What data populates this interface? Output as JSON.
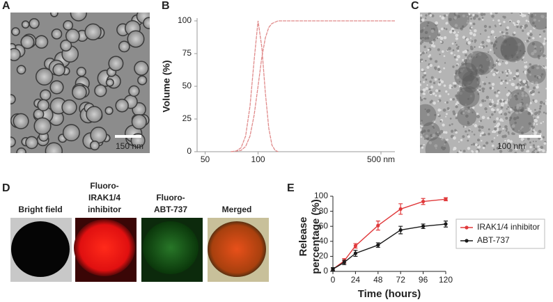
{
  "panel_labels": [
    "A",
    "B",
    "C",
    "D",
    "E"
  ],
  "images": {
    "a_scale": "150 nm",
    "c_scale": "100 nm",
    "d_captions": [
      [
        "Bright field"
      ],
      [
        "Fluoro-",
        "IRAK1/4",
        "inhibitor"
      ],
      [
        "Fluoro-",
        "ABT-737"
      ],
      [
        "Merged"
      ]
    ]
  },
  "chart_data": [
    {
      "type": "line",
      "ylabel": "Volume (%)",
      "xscale": "log",
      "xlim": [
        45,
        600
      ],
      "ylim": [
        0,
        100
      ],
      "xticks": [
        50,
        100,
        {
          "value": 500,
          "label": "500 nm"
        }
      ],
      "yticks": [
        0,
        25,
        50,
        75,
        100
      ],
      "series": [
        {
          "color": "#e08a8a",
          "x": [
            70,
            75,
            80,
            85,
            90,
            95,
            100,
            105,
            110,
            115,
            120,
            125,
            130
          ],
          "values": [
            0,
            0.5,
            3,
            12,
            35,
            70,
            100,
            80,
            45,
            18,
            5,
            1,
            0
          ]
        },
        {
          "color": "#e08a8a",
          "x": [
            70,
            80,
            85,
            90,
            95,
            100,
            105,
            110,
            115,
            120,
            130,
            140,
            600
          ],
          "values": [
            0,
            1,
            4,
            12,
            28,
            50,
            72,
            87,
            95,
            98,
            100,
            100,
            100
          ]
        }
      ]
    },
    {
      "type": "errorline",
      "xlabel": "Time (hours)",
      "ylabel": [
        "Release",
        "percentage (%)"
      ],
      "xlim": [
        0,
        120
      ],
      "ylim": [
        0,
        100
      ],
      "xticks": [
        0,
        24,
        48,
        72,
        96,
        120
      ],
      "yticks": [
        0,
        20,
        40,
        60,
        80,
        100
      ],
      "legend": "right",
      "x": [
        0,
        12,
        24,
        48,
        72,
        96,
        120
      ],
      "series": [
        {
          "name": "IRAK1/4 inhibitor",
          "color": "#e0393b",
          "values": [
            3,
            14,
            34,
            61,
            83,
            93,
            96
          ],
          "errors": [
            2,
            3,
            3,
            6,
            7,
            4,
            2
          ]
        },
        {
          "name": "ABT-737",
          "color": "#1a1a1a",
          "values": [
            3,
            12,
            24,
            35,
            55,
            60,
            63
          ],
          "errors": [
            2,
            3,
            4,
            3,
            5,
            3,
            4
          ]
        }
      ]
    }
  ]
}
